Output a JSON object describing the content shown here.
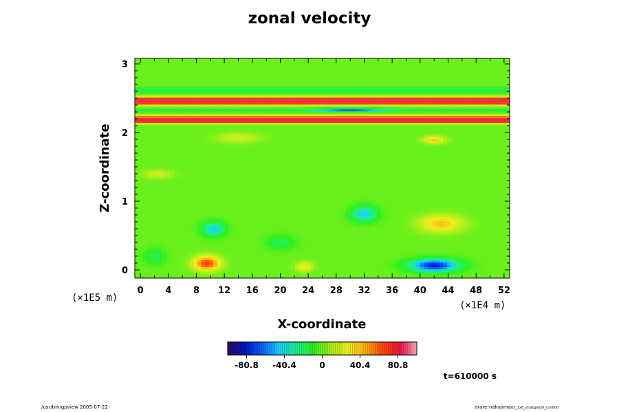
{
  "chart_data": {
    "type": "heatmap",
    "title": "zonal velocity",
    "xlabel": "X-coordinate",
    "ylabel": "Z-coordinate",
    "x_unit_label": "(×1E4 m)",
    "y_unit_label": "(×1E5 m)",
    "xlim": [
      -0.8,
      52.8
    ],
    "ylim": [
      -0.12,
      3.08
    ],
    "x_ticks": [
      0,
      4,
      8,
      12,
      16,
      20,
      24,
      28,
      32,
      36,
      40,
      44,
      48,
      52
    ],
    "y_ticks": [
      0,
      1,
      2,
      3
    ],
    "grid": false,
    "background_value": 0,
    "features": [
      {
        "kind": "band",
        "z": 2.48,
        "width": 0.04,
        "value": 85
      },
      {
        "kind": "band",
        "z": 2.43,
        "width": 0.03,
        "value": 50
      },
      {
        "kind": "band",
        "z": 2.18,
        "width": 0.035,
        "value": 90
      },
      {
        "kind": "band",
        "z": 2.23,
        "width": 0.03,
        "value": 45
      },
      {
        "kind": "band",
        "z": 2.62,
        "width": 0.04,
        "value": -18
      },
      {
        "kind": "band",
        "z": 2.32,
        "width": 0.02,
        "value": -20
      },
      {
        "kind": "blob",
        "x": 30,
        "z": 2.34,
        "sx": 5,
        "sz": 0.02,
        "value": -60
      },
      {
        "kind": "blob",
        "x": 9.5,
        "z": 0.1,
        "sx": 1.8,
        "sz": 0.1,
        "value": 70
      },
      {
        "kind": "blob",
        "x": 10.5,
        "z": 0.6,
        "sx": 1.6,
        "sz": 0.1,
        "value": -45
      },
      {
        "kind": "blob",
        "x": 32,
        "z": 0.82,
        "sx": 1.8,
        "sz": 0.11,
        "value": -45
      },
      {
        "kind": "blob",
        "x": 42,
        "z": 0.07,
        "sx": 3.4,
        "sz": 0.09,
        "value": -80
      },
      {
        "kind": "blob",
        "x": 43,
        "z": 0.68,
        "sx": 3,
        "sz": 0.12,
        "value": 40
      },
      {
        "kind": "blob",
        "x": 23.5,
        "z": 0.05,
        "sx": 1.2,
        "sz": 0.07,
        "value": 30
      },
      {
        "kind": "blob",
        "x": 14,
        "z": 1.93,
        "sx": 3,
        "sz": 0.07,
        "value": 20
      },
      {
        "kind": "blob",
        "x": 42,
        "z": 1.9,
        "sx": 1.5,
        "sz": 0.05,
        "value": 40
      },
      {
        "kind": "blob",
        "x": 2.5,
        "z": 1.4,
        "sx": 2,
        "sz": 0.06,
        "value": 20
      },
      {
        "kind": "blob",
        "x": 2,
        "z": 0.2,
        "sx": 1.5,
        "sz": 0.12,
        "value": -18
      },
      {
        "kind": "blob",
        "x": 20,
        "z": 0.4,
        "sx": 2,
        "sz": 0.1,
        "value": -20
      }
    ],
    "colorbar": {
      "min": -101,
      "max": 101,
      "tick_values": [
        -80.8,
        -40.4,
        0,
        40.4,
        80.8
      ],
      "tick_labels": [
        "-80.8",
        "-40.4",
        "0",
        "40.4",
        "80.8"
      ],
      "colors": [
        "#2a0a5a",
        "#0018c0",
        "#0a60ff",
        "#19d0ff",
        "#1ef08a",
        "#2cf01e",
        "#a8f01a",
        "#f0f01e",
        "#ffb00e",
        "#ff4a0a",
        "#f01040",
        "#f8a8c0"
      ]
    },
    "annotation": "t=610000 s"
  },
  "footer": {
    "left": "/usr/bin/gpview 2005-07-22",
    "right_main": "arare-nakajima",
    "right_sub": "03_1x8_strat@etoil_con000"
  }
}
